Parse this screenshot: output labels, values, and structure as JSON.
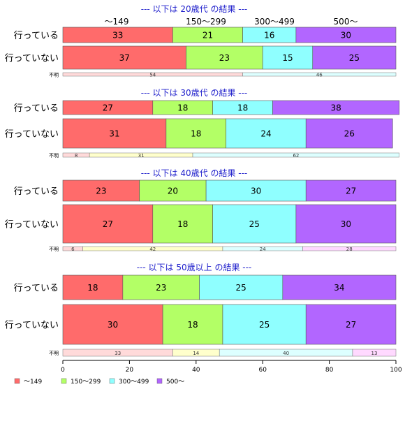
{
  "chart_data": {
    "type": "bar",
    "orientation": "horizontal",
    "stacked": true,
    "normalized_percent": true,
    "categories": [
      "〜149",
      "150〜299",
      "300〜499",
      "500〜"
    ],
    "colors": {
      "main": [
        "#ff6b6b",
        "#b3ff66",
        "#8fffff",
        "#b266ff"
      ],
      "unknown": [
        "#ffdada",
        "#ffffcc",
        "#ddffff",
        "#ffd9ff"
      ],
      "title": "#2020cc",
      "bar_border": "#555555"
    },
    "column_header_labels": [
      "〜149",
      "150〜299",
      "300〜499",
      "500〜"
    ],
    "groups": [
      {
        "title": "--- 以下は 20歳代 の結果 ---",
        "rows": [
          {
            "label": "行っている",
            "values": [
              33,
              21,
              16,
              30
            ]
          },
          {
            "label": "行っていない",
            "values": [
              37,
              23,
              15,
              25
            ]
          }
        ],
        "unknown": {
          "label": "不明",
          "values": [
            54,
            46
          ],
          "segments": [
            0,
            2
          ]
        }
      },
      {
        "title": "--- 以下は 30歳代 の結果 ---",
        "rows": [
          {
            "label": "行っている",
            "values": [
              27,
              18,
              18,
              38
            ]
          },
          {
            "label": "行っていない",
            "values": [
              31,
              18,
              24,
              26
            ]
          }
        ],
        "unknown": {
          "label": "不明",
          "values": [
            8,
            31,
            62
          ],
          "segments": [
            0,
            1,
            2
          ]
        }
      },
      {
        "title": "--- 以下は 40歳代 の結果 ---",
        "rows": [
          {
            "label": "行っている",
            "values": [
              23,
              20,
              30,
              27
            ]
          },
          {
            "label": "行っていない",
            "values": [
              27,
              18,
              25,
              30
            ]
          }
        ],
        "unknown": {
          "label": "不明",
          "values": [
            6,
            42,
            24,
            28
          ],
          "segments": [
            0,
            1,
            2,
            3
          ]
        }
      },
      {
        "title": "--- 以下は 50歳以上 の結果 ---",
        "rows": [
          {
            "label": "行っている",
            "values": [
              18,
              23,
              25,
              34
            ]
          },
          {
            "label": "行っていない",
            "values": [
              30,
              18,
              25,
              27
            ]
          }
        ],
        "unknown": {
          "label": "不明",
          "values": [
            33,
            14,
            40,
            13
          ],
          "segments": [
            0,
            1,
            2,
            3
          ]
        }
      }
    ],
    "x_axis": {
      "ticks": [
        0,
        20,
        40,
        60,
        80,
        100
      ],
      "xlim": [
        0,
        100
      ]
    },
    "legend": {
      "items": [
        "〜149",
        "150〜299",
        "300〜499",
        "500〜"
      ],
      "placement": "bottom-left"
    },
    "grid": false
  }
}
